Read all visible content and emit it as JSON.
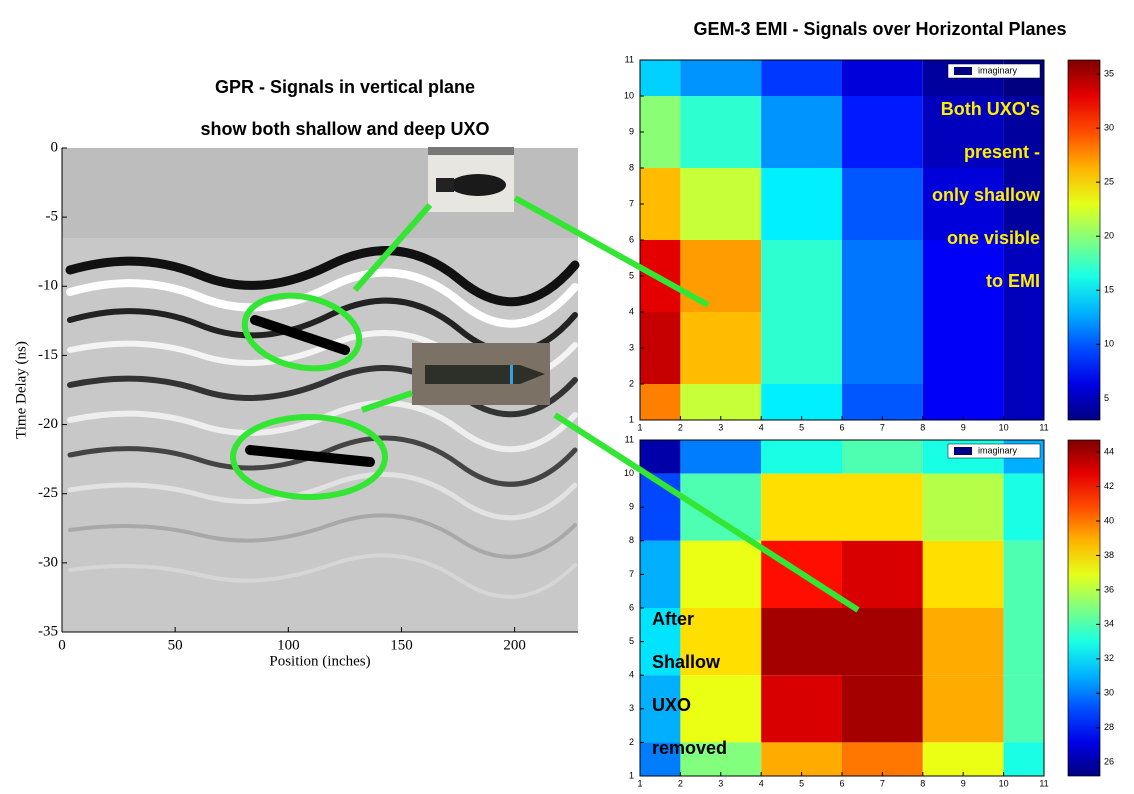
{
  "chart_data": [
    {
      "type": "image",
      "title_lines": [
        "GPR -  Signals in vertical plane",
        "show both shallow and deep UXO"
      ],
      "xlabel": "Position (inches)",
      "ylabel": "Time Delay (ns)",
      "xlim": [
        0,
        228
      ],
      "xticks": [
        0,
        50,
        100,
        150,
        200
      ],
      "ylim": [
        -35,
        0
      ],
      "yticks": [
        0,
        -5,
        -10,
        -15,
        -20,
        -25,
        -30,
        -35
      ]
    },
    {
      "type": "heatmap",
      "title": "GEM-3 EMI -  Signals over Horizontal Planes",
      "legend_label": "imaginary",
      "annotation_lines": [
        "Both UXO's",
        "present -",
        "only shallow",
        "one visible",
        "to EMI"
      ],
      "x": [
        1,
        3,
        5,
        7,
        9,
        11
      ],
      "y": [
        11,
        9,
        7,
        5,
        3,
        1
      ],
      "z": [
        [
          14,
          12,
          9,
          6,
          4,
          3
        ],
        [
          20,
          17,
          12,
          8,
          5,
          4
        ],
        [
          26,
          22,
          15,
          10,
          6,
          4
        ],
        [
          33,
          27,
          17,
          11,
          7,
          5
        ],
        [
          34,
          26,
          17,
          11,
          7,
          5
        ],
        [
          28,
          22,
          15,
          10,
          7,
          5
        ]
      ],
      "xlim": [
        1,
        11
      ],
      "xticks": [
        1,
        2,
        3,
        4,
        5,
        6,
        7,
        8,
        9,
        10,
        11
      ],
      "ylim": [
        1,
        11
      ],
      "yticks": [
        1,
        2,
        3,
        4,
        5,
        6,
        7,
        8,
        9,
        10,
        11
      ],
      "clim": [
        3,
        36.3
      ],
      "cticks": [
        5,
        10,
        15,
        20,
        25,
        30,
        35
      ],
      "colormap": "jet"
    },
    {
      "type": "heatmap",
      "legend_label": "imaginary",
      "annotation_lines": [
        "After",
        "Shallow",
        "UXO",
        "removed"
      ],
      "x": [
        1,
        3,
        5,
        7,
        9,
        11
      ],
      "y": [
        11,
        9,
        7,
        5,
        3,
        1
      ],
      "z": [
        [
          26,
          30,
          33,
          34,
          33,
          31
        ],
        [
          29,
          34,
          38,
          38,
          36,
          33
        ],
        [
          31,
          37,
          42,
          43,
          38,
          34
        ],
        [
          32,
          38,
          44,
          44,
          39,
          34
        ],
        [
          31,
          37,
          43,
          44,
          39,
          34
        ],
        [
          30,
          35,
          39,
          40,
          37,
          33
        ]
      ],
      "xlim": [
        1,
        11
      ],
      "xticks": [
        1,
        2,
        3,
        4,
        5,
        6,
        7,
        8,
        9,
        10,
        11
      ],
      "ylim": [
        1,
        11
      ],
      "yticks": [
        1,
        2,
        3,
        4,
        5,
        6,
        7,
        8,
        9,
        10,
        11
      ],
      "clim": [
        25.2,
        44.7
      ],
      "cticks": [
        26,
        28,
        30,
        32,
        34,
        36,
        38,
        40,
        42,
        44
      ],
      "colormap": "jet"
    }
  ]
}
